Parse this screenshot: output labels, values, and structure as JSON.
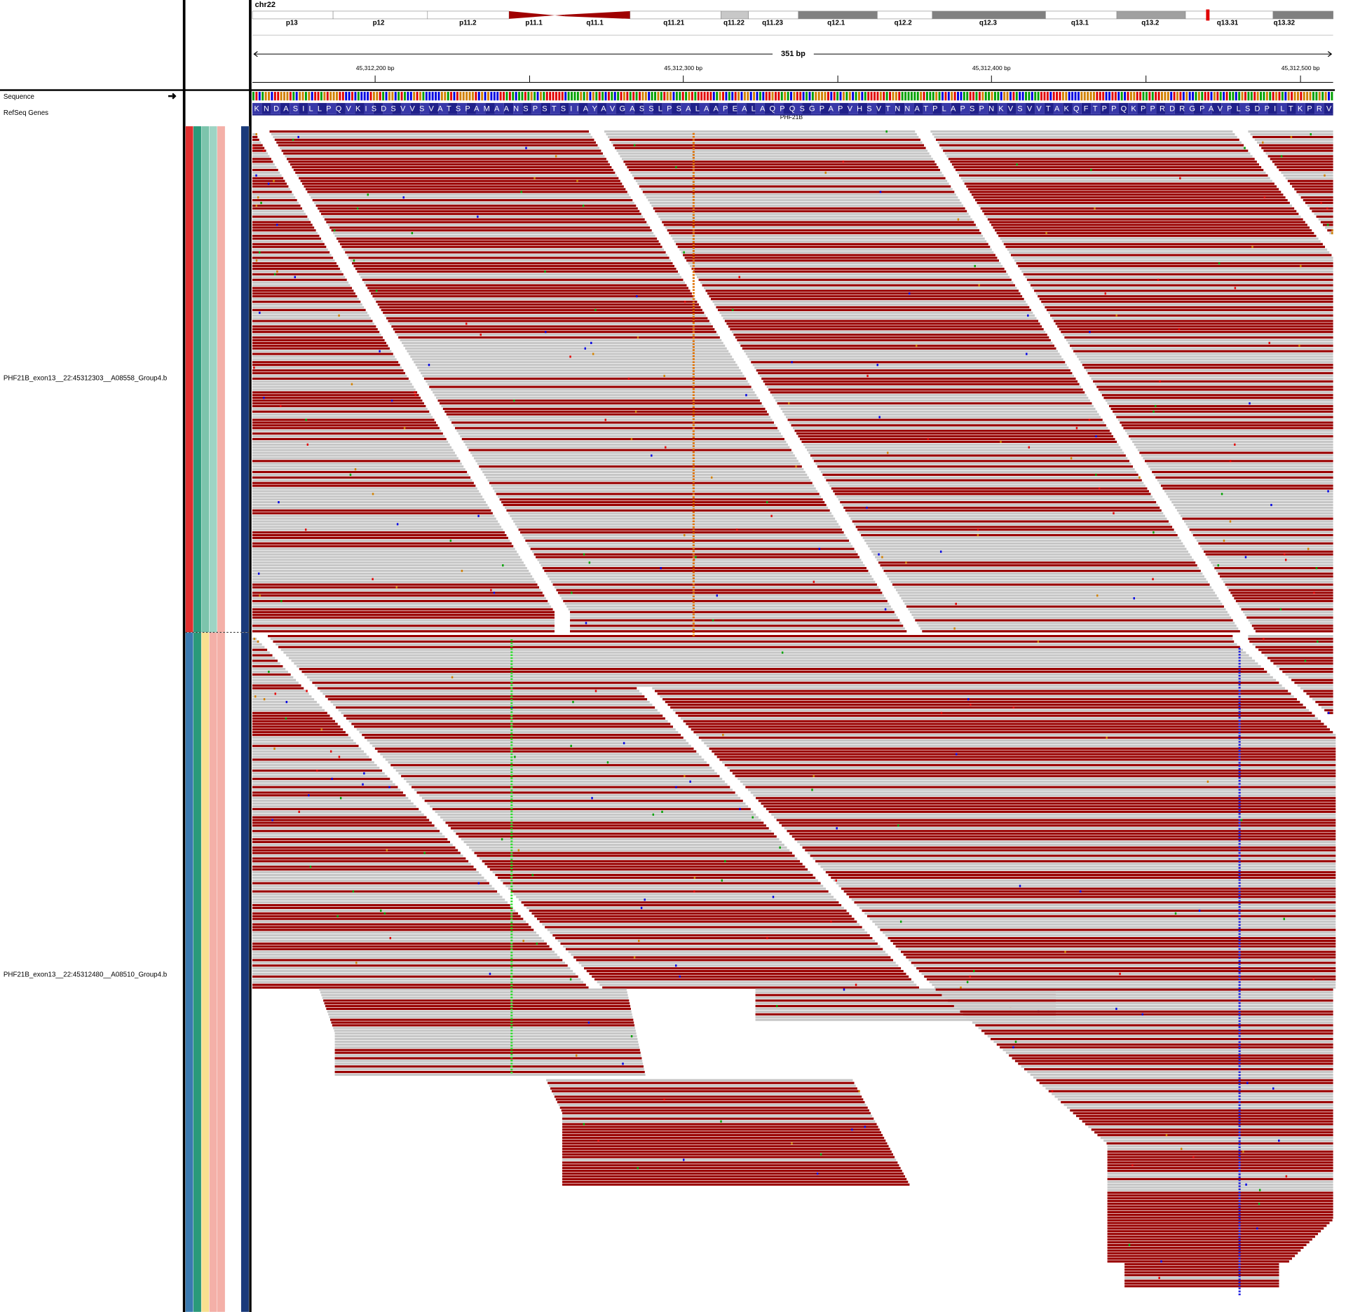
{
  "header": {
    "chromosome": "chr22",
    "cytobands": [
      "p13",
      "p12",
      "p11.2",
      "p11.1",
      "q11.1",
      "q11.21",
      "q11.22",
      "q11.23",
      "q12.1",
      "q12.2",
      "q12.3",
      "q13.1",
      "q13.2",
      "q13.31",
      "q13.32"
    ],
    "span": "351 bp",
    "positions": [
      "45,312,200 bp",
      "45,312,300 bp",
      "45,312,400 bp",
      "45,312,500 bp"
    ]
  },
  "tracks": {
    "sequence": "Sequence",
    "refseq": "RefSeq Genes",
    "amino_acids": "KNDASILLPQVKISDSVVSVATSPAMAANSPSTSIIAYAVGASSLPSALAAPEALAQPQSGPAPVHSVTNNATPLAPSPNKVSVVTAKQFTPPQKPPRDRGPAVPLSDPILTKPRV",
    "gene": "PHF21B"
  },
  "alignments": [
    "PHF21B_exon13__22:45312303__A08558_Group4.b",
    "PHF21B_exon13__22:45312480__A08510_Group4.b"
  ]
}
